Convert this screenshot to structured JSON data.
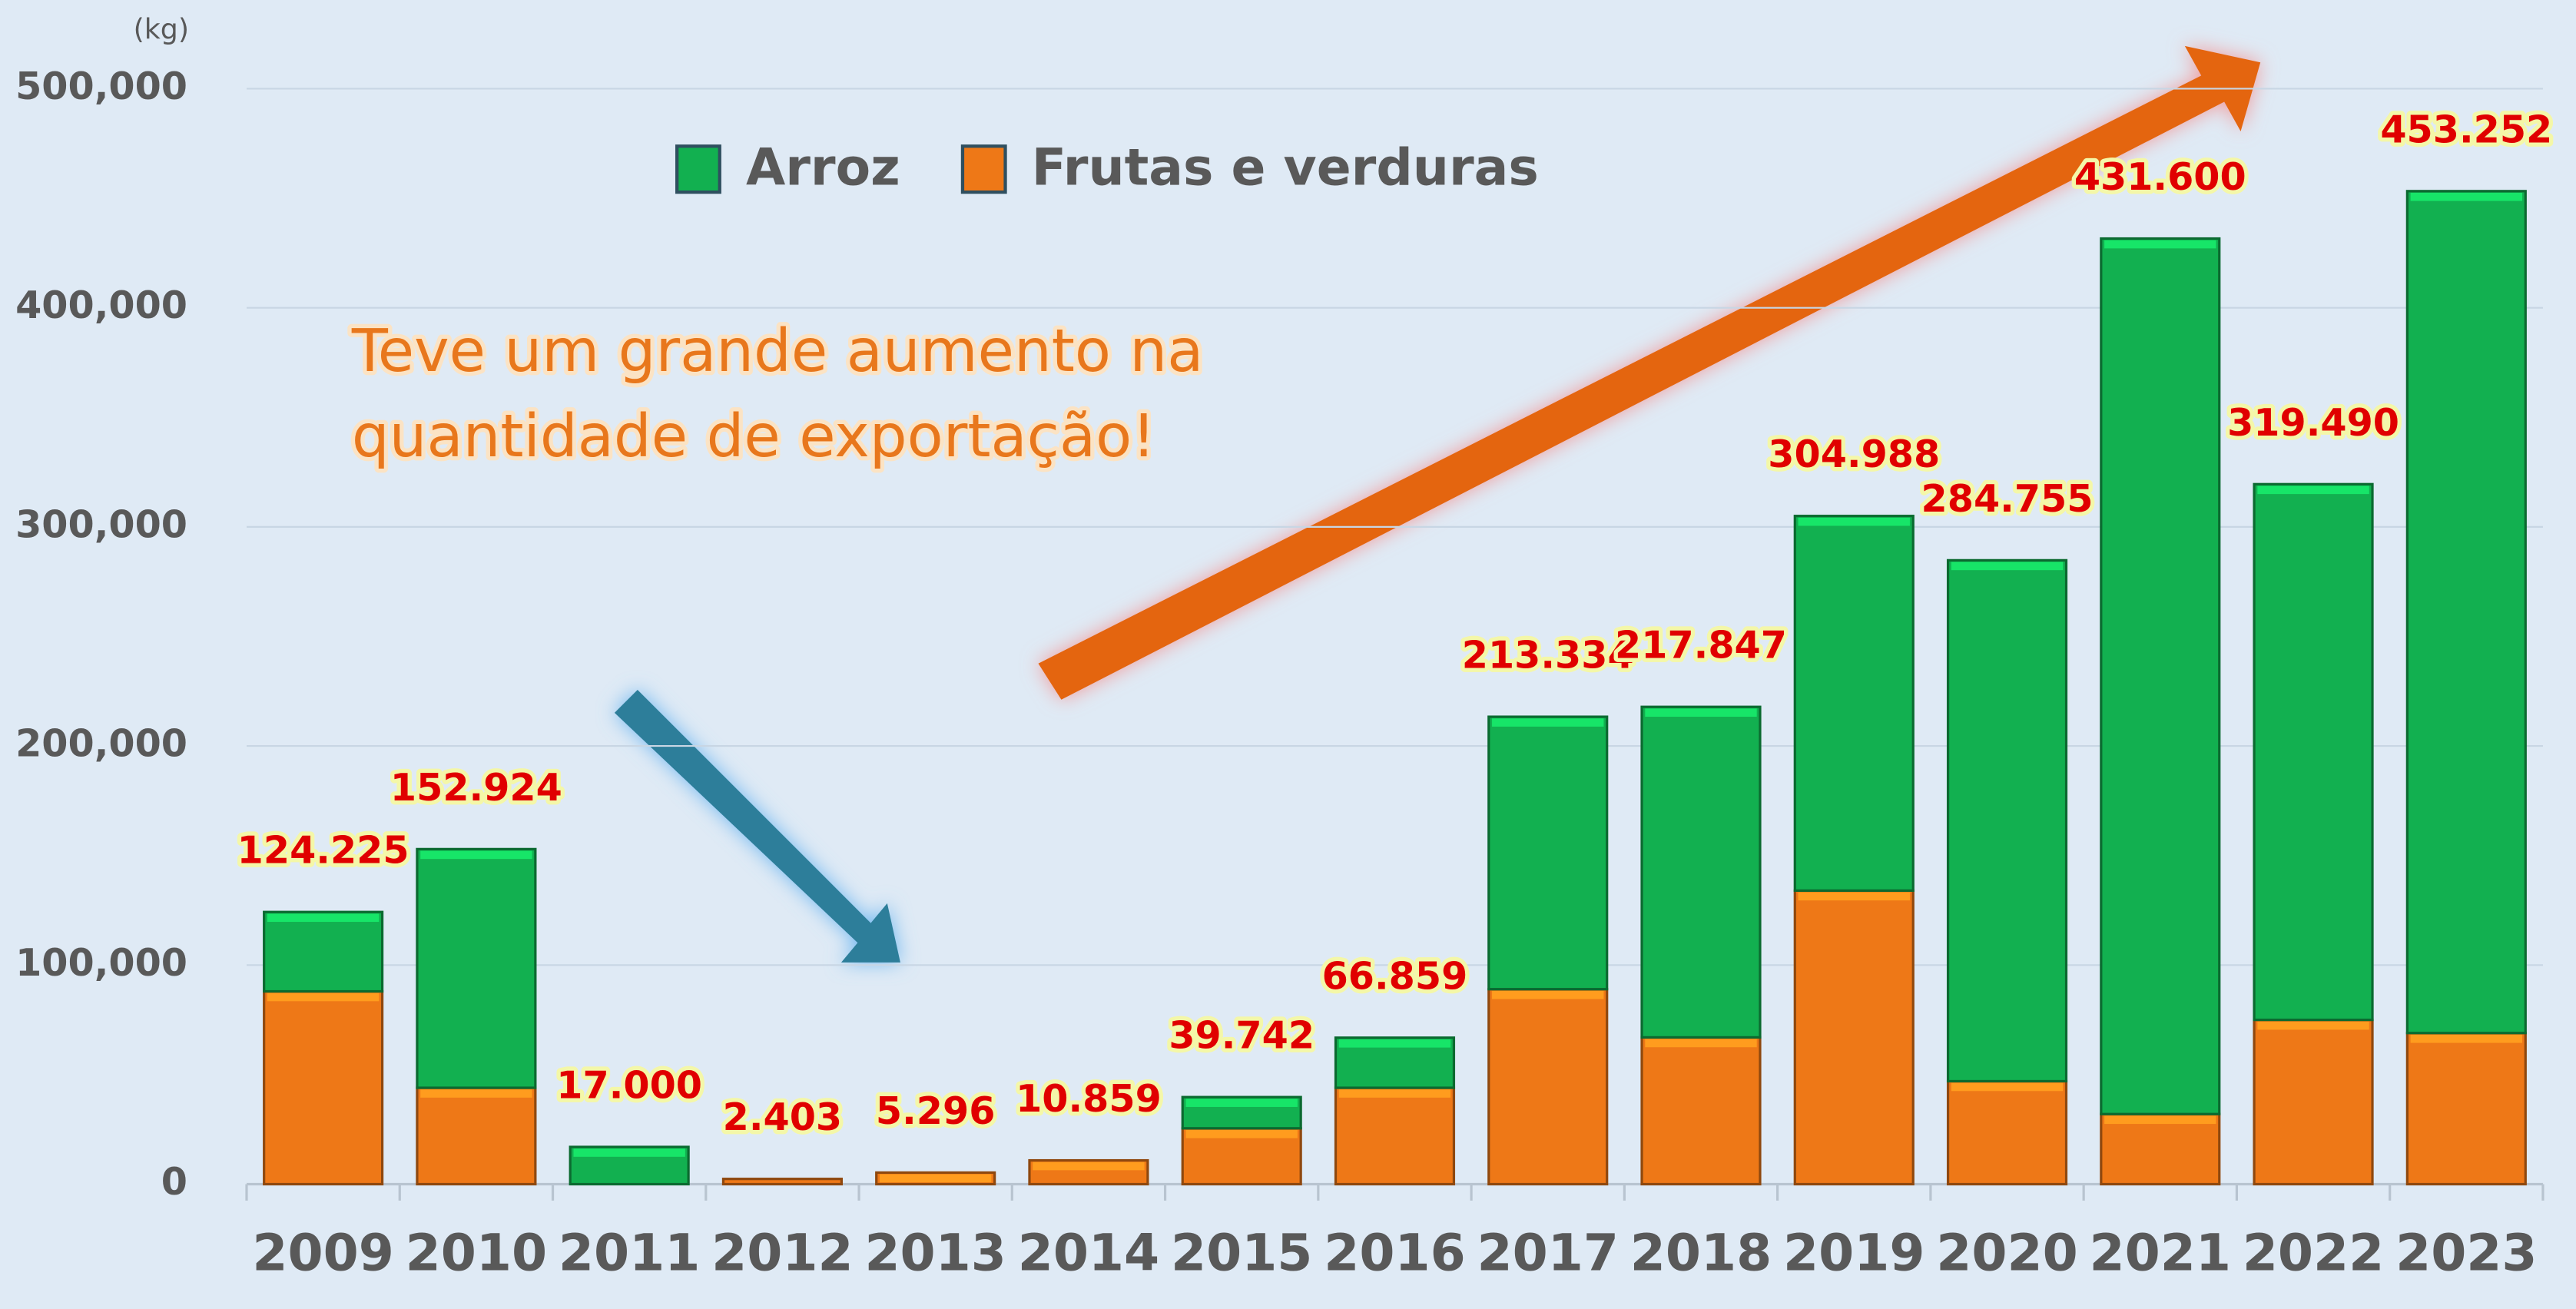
{
  "chart_data": {
    "type": "stacked_bar",
    "y_unit": "(kg)",
    "annotation": [
      "Teve um grande aumento na",
      "quantidade de exportação!"
    ],
    "categories": [
      "2009",
      "2010",
      "2011",
      "2012",
      "2013",
      "2014",
      "2015",
      "2016",
      "2017",
      "2018",
      "2019",
      "2020",
      "2021",
      "2022",
      "2023"
    ],
    "series": [
      {
        "name": "Frutas e verduras",
        "color": "#ee7817",
        "values": [
          88000,
          44000,
          0,
          2403,
          5296,
          10859,
          25500,
          44000,
          89000,
          67000,
          134000,
          47000,
          32000,
          75000,
          69000
        ]
      },
      {
        "name": "Arroz",
        "color": "#12b050",
        "values": [
          36225,
          108924,
          17000,
          0,
          0,
          0,
          14242,
          22859,
          124334,
          150847,
          170988,
          237755,
          399600,
          244490,
          384252
        ]
      }
    ],
    "totals": [
      124225,
      152924,
      17000,
      2403,
      5296,
      10859,
      39742,
      66859,
      213334,
      217847,
      304988,
      284755,
      431600,
      319490,
      453252
    ],
    "value_labels": [
      "124.225",
      "152.924",
      "17.000",
      "2.403",
      "5.296",
      "10.859",
      "39.742",
      "66.859",
      "213.334",
      "217.847",
      "304.988",
      "284.755",
      "431.600",
      "319.490",
      "453.252"
    ],
    "ylim": [
      0,
      500000
    ],
    "yticks": [
      0,
      {
        "value": 100000,
        "label": "100,000"
      },
      {
        "value": 200000,
        "label": "200,000"
      },
      {
        "value": 300000,
        "label": "300,000"
      },
      {
        "value": 400000,
        "label": "400,000"
      },
      {
        "value": 500000,
        "label": "500,000"
      }
    ],
    "grid": true,
    "legend_order": [
      1,
      0
    ]
  }
}
